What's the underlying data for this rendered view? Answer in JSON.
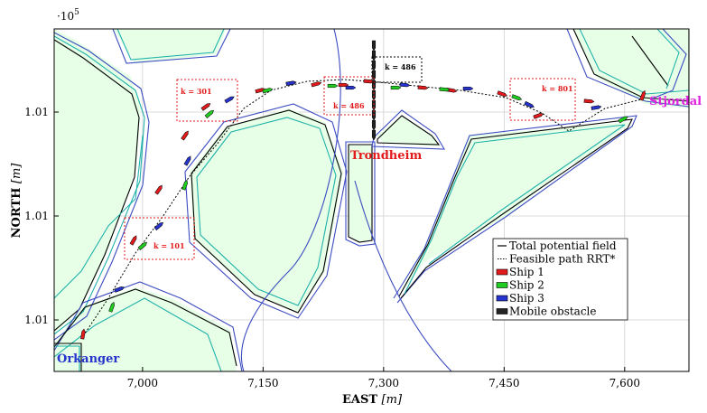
{
  "chart_data": {
    "type": "line",
    "exponent_label": "·10",
    "exponent_power": "5",
    "xlabel": "EAST",
    "xlabel_unit": "[m]",
    "ylabel": "NORTH",
    "ylabel_unit": "[m]",
    "xlim": [
      6890,
      7680
    ],
    "x_ticks": [
      7000,
      7150,
      7300,
      7450,
      7600
    ],
    "x_tick_labels": [
      "7,000",
      "7,150",
      "7,300",
      "7,450",
      "7,600"
    ],
    "y_tick_labels": [
      "1.01",
      "1.01",
      "1.01",
      "1.01"
    ],
    "grid": true,
    "legend_position": "lower-right",
    "legend": [
      {
        "label": "Total potential field",
        "style": "line",
        "color": "#000000"
      },
      {
        "label": "Feasible path RRT*",
        "style": "dotted",
        "color": "#000000"
      },
      {
        "label": "Ship 1",
        "style": "ship",
        "color": "#e31a1c"
      },
      {
        "label": "Ship 2",
        "style": "ship",
        "color": "#1fcc1f"
      },
      {
        "label": "Ship 3",
        "style": "ship",
        "color": "#2633cc"
      },
      {
        "label": "Mobile obstacle",
        "style": "ship",
        "color": "#222222"
      }
    ],
    "places": [
      {
        "name": "Orkanger",
        "color": "#2633cc"
      },
      {
        "name": "Trondheim",
        "color": "#e31a1c"
      },
      {
        "name": "Stjordal",
        "color": "#e020e0"
      }
    ],
    "time_labels": [
      "k = 101",
      "k = 301",
      "k = 486",
      "k = 486",
      "k = 801"
    ]
  }
}
